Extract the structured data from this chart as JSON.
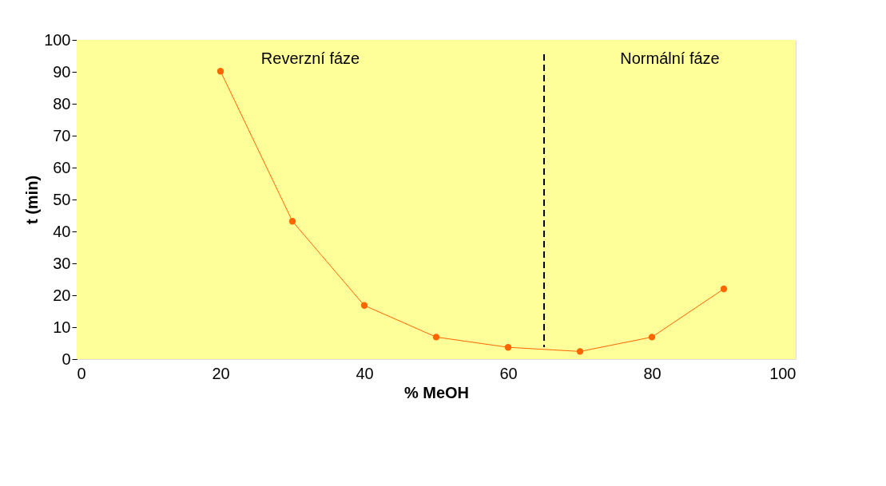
{
  "chart_data": {
    "type": "line",
    "xlabel": "% MeOH",
    "ylabel": "t (min)",
    "x": [
      20,
      30,
      40,
      50,
      60,
      70,
      80,
      90
    ],
    "series": [
      {
        "color": "#ff6600",
        "values": [
          90.2,
          43.2,
          16.8,
          6.9,
          3.7,
          2.4,
          6.9,
          22
        ]
      }
    ],
    "xlim": [
      0,
      100
    ],
    "xticks": [
      0,
      20,
      40,
      60,
      80,
      100
    ],
    "ylim": [
      0,
      100
    ],
    "yticks": [
      0,
      10,
      20,
      30,
      40,
      50,
      60,
      70,
      80,
      90,
      100
    ],
    "ref_lines": [
      {
        "axis": "x",
        "value": 65,
        "color": "#000000",
        "line_style": "dashed"
      }
    ],
    "bands": [
      {
        "axis": "x",
        "from": 0,
        "to": 65,
        "label": "Reverzní fáze",
        "color": "#ffff99"
      },
      {
        "axis": "x",
        "from": 65,
        "to": 100,
        "label": "Normální fáze",
        "color": "#ffff99"
      }
    ],
    "marker": "circle",
    "line_style": "solid",
    "grid": false
  }
}
